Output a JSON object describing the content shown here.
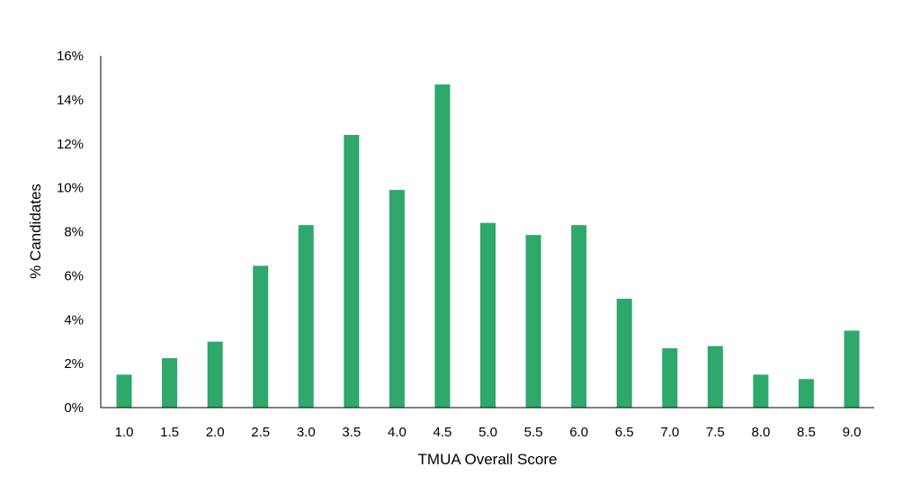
{
  "chart_data": {
    "type": "bar",
    "title": "",
    "xlabel": "TMUA Overall Score",
    "ylabel": "% Candidates",
    "categories": [
      "1.0",
      "1.5",
      "2.0",
      "2.5",
      "3.0",
      "3.5",
      "4.0",
      "4.5",
      "5.0",
      "5.5",
      "6.0",
      "6.5",
      "7.0",
      "7.5",
      "8.0",
      "8.5",
      "9.0"
    ],
    "values": [
      1.5,
      2.25,
      3.0,
      6.45,
      8.3,
      12.4,
      9.9,
      14.7,
      8.4,
      7.85,
      8.3,
      4.95,
      2.7,
      2.8,
      1.5,
      1.3,
      3.5
    ],
    "value_unit": "%",
    "ylim": [
      0,
      16
    ],
    "yticks": [
      0,
      2,
      4,
      6,
      8,
      10,
      12,
      14,
      16
    ],
    "ytick_labels": [
      "0%",
      "2%",
      "4%",
      "6%",
      "8%",
      "10%",
      "12%",
      "14%",
      "16%"
    ],
    "grid": false,
    "legend": "none",
    "bar_color": "#2ea86b",
    "axis_color": "#000000"
  }
}
